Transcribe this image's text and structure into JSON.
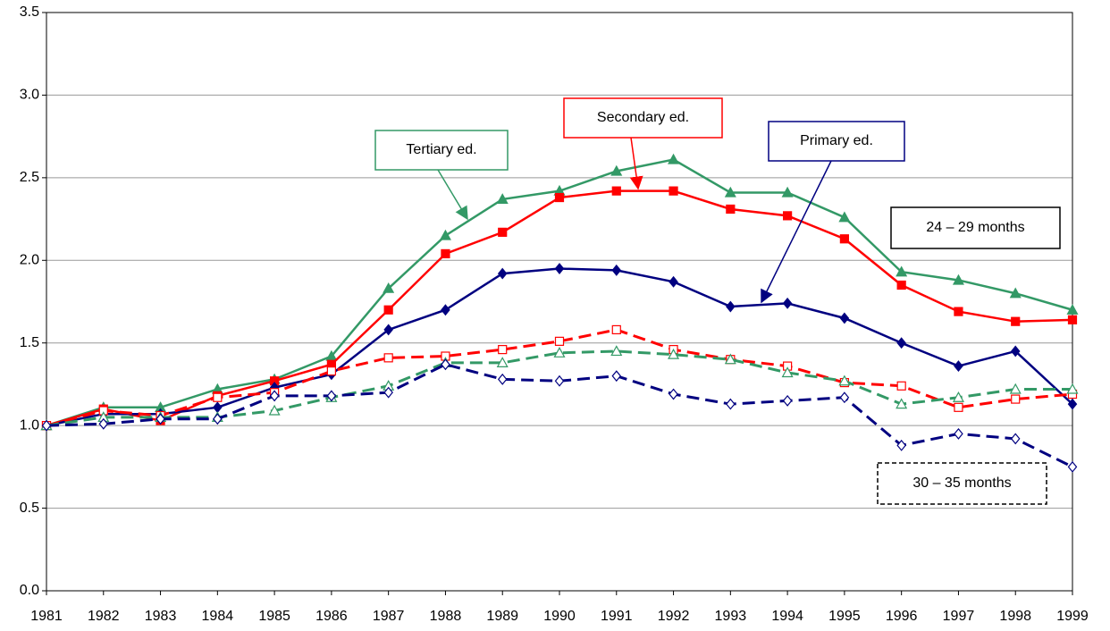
{
  "chart_data": {
    "type": "line",
    "categories": [
      "1981",
      "1982",
      "1983",
      "1984",
      "1985",
      "1986",
      "1987",
      "1988",
      "1989",
      "1990",
      "1991",
      "1992",
      "1993",
      "1994",
      "1995",
      "1996",
      "1997",
      "1998",
      "1999"
    ],
    "ylim": [
      0,
      3.5
    ],
    "yticks": [
      {
        "value": 0,
        "label": "0.0"
      },
      0.5,
      {
        "value": 1,
        "label": "1.0"
      },
      1.5,
      {
        "value": 2,
        "label": "2.0"
      },
      2.5,
      {
        "value": 3,
        "label": "3.0"
      },
      3.5
    ],
    "grid": true,
    "series": [
      {
        "color": "#339966",
        "marker": "triangle",
        "filled": true,
        "dashed": false,
        "values": [
          1.0,
          1.11,
          1.11,
          1.22,
          1.28,
          1.42,
          1.83,
          2.15,
          2.37,
          2.42,
          2.54,
          2.61,
          2.41,
          2.41,
          2.26,
          1.93,
          1.88,
          1.8,
          1.7
        ]
      },
      {
        "color": "#ff0000",
        "marker": "square",
        "filled": true,
        "dashed": false,
        "values": [
          1.0,
          1.1,
          1.03,
          1.18,
          1.27,
          1.37,
          1.7,
          2.04,
          2.17,
          2.38,
          2.42,
          2.42,
          2.31,
          2.27,
          2.13,
          1.85,
          1.69,
          1.63,
          1.64
        ]
      },
      {
        "color": "#000080",
        "marker": "diamond",
        "filled": true,
        "dashed": false,
        "values": [
          1.0,
          1.07,
          1.07,
          1.11,
          1.23,
          1.31,
          1.58,
          1.7,
          1.92,
          1.95,
          1.94,
          1.87,
          1.72,
          1.74,
          1.65,
          1.5,
          1.36,
          1.45,
          1.13
        ]
      },
      {
        "color": "#ff0000",
        "marker": "square",
        "filled": false,
        "dashed": true,
        "values": [
          1.0,
          1.09,
          1.06,
          1.17,
          1.2,
          1.33,
          1.41,
          1.42,
          1.46,
          1.51,
          1.58,
          1.46,
          1.4,
          1.36,
          1.26,
          1.24,
          1.11,
          1.16,
          1.19
        ]
      },
      {
        "color": "#339966",
        "marker": "triangle",
        "filled": false,
        "dashed": true,
        "values": [
          1.0,
          1.05,
          1.05,
          1.05,
          1.09,
          1.17,
          1.24,
          1.38,
          1.38,
          1.44,
          1.45,
          1.43,
          1.4,
          1.32,
          1.27,
          1.13,
          1.17,
          1.22,
          1.22
        ]
      },
      {
        "color": "#000080",
        "marker": "diamond",
        "filled": false,
        "dashed": true,
        "values": [
          1.0,
          1.01,
          1.04,
          1.04,
          1.18,
          1.18,
          1.2,
          1.37,
          1.28,
          1.27,
          1.3,
          1.19,
          1.13,
          1.15,
          1.17,
          0.88,
          0.95,
          0.92,
          0.75
        ]
      }
    ],
    "annotations": [
      {
        "text": "Tertiary ed.",
        "color": "#339966"
      },
      {
        "text": "Secondary ed.",
        "color": "#ff0000"
      },
      {
        "text": "Primary ed.",
        "color": "#000080"
      },
      {
        "text": "24 – 29 months",
        "color": "#000000"
      },
      {
        "text": "30 – 35 months",
        "color": "#000000",
        "dashed": true
      }
    ]
  }
}
